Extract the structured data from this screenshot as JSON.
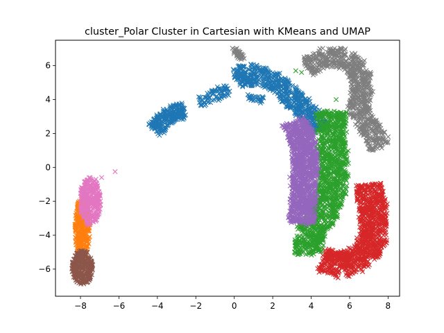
{
  "chart_data": {
    "type": "scatter",
    "title": "cluster_Polar Cluster in Cartesian with KMeans and UMAP",
    "xlabel": "",
    "ylabel": "",
    "xlim": [
      -9.3,
      8.6
    ],
    "ylim": [
      -7.6,
      7.5
    ],
    "xticks": [
      -8,
      -6,
      -4,
      -2,
      0,
      2,
      4,
      6,
      8
    ],
    "yticks": [
      -6,
      -4,
      -2,
      0,
      2,
      4,
      6
    ],
    "xtick_labels": [
      "−8",
      "−6",
      "−4",
      "−2",
      "0",
      "2",
      "4",
      "6",
      "8"
    ],
    "ytick_labels": [
      "−6",
      "−4",
      "−2",
      "0",
      "2",
      "4",
      "6"
    ],
    "grid": false,
    "marker": "x",
    "series": [
      {
        "color": "#1f77b4",
        "regions": [
          {
            "type": "polyline",
            "points": [
              [
                -4.2,
                2.2
              ],
              [
                -3.3,
                3.2
              ],
              [
                -2.6,
                3.4
              ]
            ],
            "width": 0.45,
            "count": 260
          },
          {
            "type": "polyline",
            "points": [
              [
                -1.8,
                3.8
              ],
              [
                -1.0,
                4.3
              ],
              [
                -0.3,
                4.6
              ]
            ],
            "width": 0.3,
            "count": 80
          },
          {
            "type": "polyline",
            "points": [
              [
                0.1,
                5.2
              ],
              [
                0.7,
                5.6
              ],
              [
                1.4,
                5.3
              ],
              [
                2.2,
                5.0
              ],
              [
                2.9,
                4.2
              ],
              [
                3.6,
                3.5
              ],
              [
                4.2,
                2.8
              ],
              [
                4.6,
                2.2
              ]
            ],
            "width": 0.55,
            "count": 650
          },
          {
            "type": "polyline",
            "points": [
              [
                0.7,
                4.1
              ],
              [
                1.5,
                4.0
              ]
            ],
            "width": 0.12,
            "count": 30
          }
        ],
        "extra_points": [
          [
            0.9,
            4.85
          ]
        ]
      },
      {
        "color": "#ff7f0e",
        "regions": [
          {
            "type": "ellipse",
            "cx": -7.9,
            "cy": -3.6,
            "rx": 0.4,
            "ry": 1.8,
            "count": 380
          }
        ]
      },
      {
        "color": "#2ca02c",
        "regions": [
          {
            "type": "polyline",
            "points": [
              [
                5.1,
                3.3
              ],
              [
                5.0,
                1.5
              ],
              [
                5.2,
                0.0
              ],
              [
                5.0,
                -1.5
              ],
              [
                4.6,
                -2.9
              ],
              [
                3.8,
                -4.0
              ],
              [
                3.9,
                -5.1
              ]
            ],
            "width": 0.75,
            "count": 1300
          }
        ],
        "extra_points": [
          [
            3.2,
            5.7
          ],
          [
            3.5,
            5.6
          ],
          [
            5.3,
            4.0
          ]
        ]
      },
      {
        "color": "#d62728",
        "regions": [
          {
            "type": "polyline",
            "points": [
              [
                7.0,
                -1.0
              ],
              [
                7.2,
                -2.5
              ],
              [
                7.3,
                -4.0
              ],
              [
                6.8,
                -5.2
              ],
              [
                5.6,
                -5.8
              ],
              [
                4.6,
                -5.4
              ]
            ],
            "width": 0.7,
            "count": 1100
          }
        ]
      },
      {
        "color": "#9467bd",
        "regions": [
          {
            "type": "polyline",
            "points": [
              [
                3.1,
                2.7
              ],
              [
                3.6,
                1.5
              ],
              [
                3.7,
                0.0
              ],
              [
                3.6,
                -1.5
              ],
              [
                3.5,
                -3.3
              ]
            ],
            "width": 0.65,
            "count": 1200
          }
        ]
      },
      {
        "color": "#8c564b",
        "regions": [
          {
            "type": "ellipse",
            "cx": -7.9,
            "cy": -5.9,
            "rx": 0.55,
            "ry": 1.0,
            "count": 300
          }
        ]
      },
      {
        "color": "#e377c2",
        "regions": [
          {
            "type": "ellipse",
            "cx": -7.5,
            "cy": -2.0,
            "rx": 0.55,
            "ry": 1.4,
            "count": 320
          }
        ],
        "extra_points": [
          [
            -6.9,
            -0.6
          ],
          [
            -6.2,
            -0.25
          ],
          [
            -7.2,
            -0.7
          ]
        ]
      },
      {
        "color": "#7f7f7f",
        "regions": [
          {
            "type": "polyline",
            "points": [
              [
                0.0,
                7.0
              ],
              [
                0.4,
                6.4
              ]
            ],
            "width": 0.15,
            "count": 40
          },
          {
            "type": "polyline",
            "points": [
              [
                3.8,
                5.9
              ],
              [
                4.8,
                6.5
              ],
              [
                5.8,
                6.4
              ],
              [
                6.5,
                5.7
              ],
              [
                6.6,
                4.6
              ],
              [
                6.5,
                3.4
              ],
              [
                7.0,
                2.4
              ],
              [
                7.6,
                1.2
              ]
            ],
            "width": 0.55,
            "count": 800
          }
        ]
      }
    ]
  }
}
